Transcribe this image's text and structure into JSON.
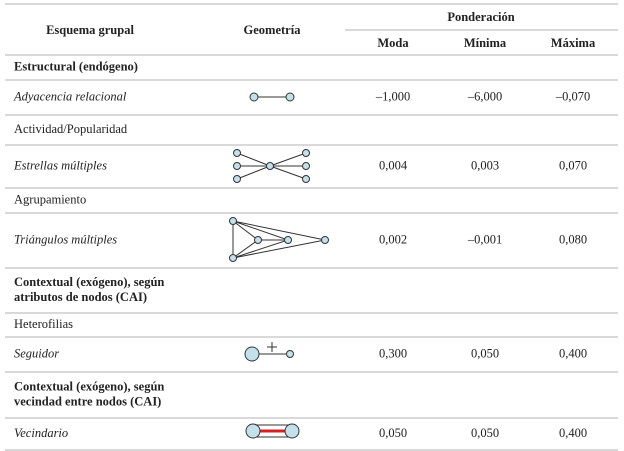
{
  "header": {
    "scheme": "Esquema grupal",
    "geometry": "Geometría",
    "weighting": "Ponderación",
    "columns": [
      "Moda",
      "Mínima",
      "Máxima"
    ]
  },
  "rows": [
    {
      "section": [
        "Estructural (endógeno)"
      ]
    },
    {
      "label": "Adyacencia relacional",
      "values": [
        "–1,000",
        "–6,000",
        "–0,070"
      ]
    },
    {
      "group": "Actividad/Popularidad"
    },
    {
      "label": "Estrellas múltiples",
      "values": [
        "0,004",
        "0,003",
        "0,070"
      ]
    },
    {
      "group": "Agrupamiento"
    },
    {
      "label": "Triángulos múltiples",
      "values": [
        "0,002",
        "–0,001",
        "0,080"
      ]
    },
    {
      "section": [
        "Contextual (exógeno), según",
        "atributos de nodos (CAI)"
      ]
    },
    {
      "group": "Heterofilias"
    },
    {
      "label": "Seguidor",
      "values": [
        "0,300",
        "0,050",
        "0,400"
      ]
    },
    {
      "section": [
        "Contextual (exógeno), según",
        "vecindad entre nodos (CAI)"
      ]
    },
    {
      "label": "Vecindario",
      "values": [
        "0,050",
        "0,050",
        "0,400"
      ]
    }
  ]
}
